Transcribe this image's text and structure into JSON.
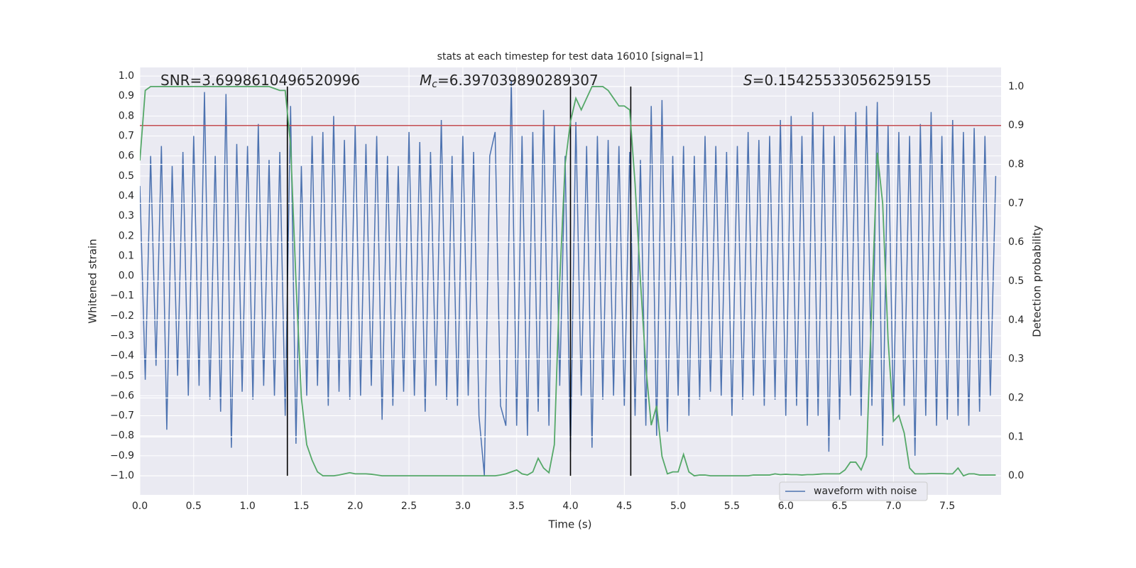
{
  "chart_data": {
    "type": "line",
    "title": "stats at each timestep for test data 16010 [signal=1]",
    "xlabel": "Time (s)",
    "ylabel": "Whitened strain",
    "y2label": "Detection probability",
    "annotations": [
      {
        "text": "SNR=3.6998610496520996"
      },
      {
        "symbol": "M",
        "sub": "c",
        "text": "=6.397039890289307"
      },
      {
        "symbol": "S",
        "text": "=0.15425533056259155"
      }
    ],
    "x": [
      0,
      0.05,
      0.1,
      0.15,
      0.2,
      0.25,
      0.3,
      0.35,
      0.4,
      0.45,
      0.5,
      0.55,
      0.6,
      0.65,
      0.7,
      0.75,
      0.8,
      0.85,
      0.9,
      0.95,
      1,
      1.05,
      1.1,
      1.15,
      1.2,
      1.25,
      1.3,
      1.35,
      1.4,
      1.45,
      1.5,
      1.55,
      1.6,
      1.65,
      1.7,
      1.75,
      1.8,
      1.85,
      1.9,
      1.95,
      2,
      2.05,
      2.1,
      2.15,
      2.2,
      2.25,
      2.3,
      2.35,
      2.4,
      2.45,
      2.5,
      2.55,
      2.6,
      2.65,
      2.7,
      2.75,
      2.8,
      2.85,
      2.9,
      2.95,
      3,
      3.05,
      3.1,
      3.15,
      3.2,
      3.25,
      3.3,
      3.35,
      3.4,
      3.45,
      3.5,
      3.55,
      3.6,
      3.65,
      3.7,
      3.75,
      3.8,
      3.85,
      3.9,
      3.95,
      4,
      4.05,
      4.1,
      4.15,
      4.2,
      4.25,
      4.3,
      4.35,
      4.4,
      4.45,
      4.5,
      4.55,
      4.6,
      4.65,
      4.7,
      4.75,
      4.8,
      4.85,
      4.9,
      4.95,
      5,
      5.05,
      5.1,
      5.15,
      5.2,
      5.25,
      5.3,
      5.35,
      5.4,
      5.45,
      5.5,
      5.55,
      5.6,
      5.65,
      5.7,
      5.75,
      5.8,
      5.85,
      5.9,
      5.95,
      6,
      6.05,
      6.1,
      6.15,
      6.2,
      6.25,
      6.3,
      6.35,
      6.4,
      6.45,
      6.5,
      6.55,
      6.6,
      6.65,
      6.7,
      6.75,
      6.8,
      6.85,
      6.9,
      6.95,
      7,
      7.05,
      7.1,
      7.15,
      7.2,
      7.25,
      7.3,
      7.35,
      7.4,
      7.45,
      7.5,
      7.55,
      7.6,
      7.65,
      7.7,
      7.75,
      7.8,
      7.85,
      7.9,
      7.95
    ],
    "series": [
      {
        "name": "waveform with noise",
        "color": "#4c72b0",
        "values": [
          0.45,
          -0.52,
          0.6,
          -0.45,
          0.65,
          -0.77,
          0.55,
          -0.5,
          0.62,
          -0.6,
          0.7,
          -0.55,
          0.92,
          -0.62,
          0.6,
          -0.68,
          0.91,
          -0.86,
          0.66,
          -0.58,
          0.65,
          -0.62,
          0.76,
          -0.55,
          0.58,
          -0.6,
          0.62,
          -0.7,
          0.85,
          -0.84,
          0.55,
          -0.6,
          0.7,
          -0.55,
          0.72,
          -0.65,
          0.8,
          -0.58,
          0.68,
          -0.62,
          0.75,
          -0.6,
          0.66,
          -0.55,
          0.7,
          -0.72,
          0.6,
          -0.65,
          0.55,
          -0.58,
          0.72,
          -0.6,
          0.67,
          -0.68,
          0.62,
          -0.55,
          0.78,
          -0.62,
          0.6,
          -0.65,
          0.7,
          -0.6,
          0.62,
          -0.7,
          -1.0,
          0.6,
          0.72,
          -0.65,
          -0.75,
          0.98,
          -0.75,
          0.7,
          -0.8,
          0.72,
          -0.68,
          0.83,
          -0.75,
          0.75,
          -0.55,
          0.6,
          -0.88,
          0.77,
          -0.6,
          0.65,
          -0.86,
          0.7,
          -0.62,
          0.68,
          -0.6,
          0.65,
          -0.65,
          0.62,
          -0.7,
          0.58,
          -0.75,
          0.85,
          -0.8,
          0.88,
          -0.78,
          0.6,
          -0.6,
          0.65,
          -0.7,
          0.6,
          -0.62,
          0.7,
          -0.58,
          0.65,
          -0.6,
          0.62,
          -0.7,
          0.65,
          -0.62,
          0.72,
          -0.6,
          0.68,
          -0.65,
          0.7,
          -0.62,
          0.78,
          -0.7,
          0.8,
          -0.65,
          0.7,
          -0.75,
          0.82,
          -0.7,
          0.75,
          -0.88,
          0.7,
          -0.72,
          0.75,
          -0.6,
          0.82,
          -0.7,
          0.85,
          -0.65,
          0.87,
          -0.85,
          0.75,
          -0.7,
          0.72,
          -0.65,
          0.7,
          -0.9,
          0.76,
          -0.7,
          0.82,
          -0.75,
          0.7,
          -0.72,
          0.78,
          -0.7,
          0.72,
          -0.75,
          0.74,
          -0.68,
          0.7,
          -0.6,
          0.5
        ]
      },
      {
        "color": "#55a868",
        "axis": "y2",
        "values": [
          0.81,
          0.99,
          1.0,
          1.0,
          1.0,
          1.0,
          1.0,
          1.0,
          1.0,
          1.0,
          1.0,
          1.0,
          1.0,
          1.0,
          1.0,
          1.0,
          1.0,
          1.0,
          1.0,
          1.0,
          1.0,
          1.0,
          1.0,
          1.0,
          1.0,
          0.995,
          0.99,
          0.99,
          0.85,
          0.5,
          0.2,
          0.08,
          0.04,
          0.01,
          0.0,
          0.0,
          0.0,
          0.002,
          0.005,
          0.008,
          0.005,
          0.005,
          0.005,
          0.004,
          0.002,
          0.0,
          0.0,
          0.0,
          0.0,
          0.0,
          0.0,
          0.0,
          0.0,
          0.0,
          0.0,
          0.0,
          0.0,
          0.0,
          0.0,
          0.0,
          0.0,
          0.0,
          0.0,
          0.0,
          0.0,
          0.0,
          0.0,
          0.002,
          0.005,
          0.01,
          0.015,
          0.005,
          0.002,
          0.01,
          0.045,
          0.02,
          0.008,
          0.08,
          0.5,
          0.8,
          0.91,
          0.97,
          0.94,
          0.97,
          1.0,
          1.0,
          1.0,
          0.99,
          0.97,
          0.95,
          0.95,
          0.94,
          0.75,
          0.5,
          0.28,
          0.13,
          0.18,
          0.05,
          0.005,
          0.01,
          0.01,
          0.055,
          0.01,
          0.0,
          0.002,
          0.002,
          0.0,
          0.0,
          0.0,
          0.0,
          0.0,
          0.0,
          0.0,
          0.0,
          0.002,
          0.002,
          0.002,
          0.002,
          0.005,
          0.003,
          0.004,
          0.003,
          0.003,
          0.002,
          0.003,
          0.003,
          0.004,
          0.005,
          0.005,
          0.005,
          0.005,
          0.015,
          0.035,
          0.035,
          0.015,
          0.05,
          0.45,
          0.83,
          0.7,
          0.35,
          0.14,
          0.155,
          0.11,
          0.02,
          0.005,
          0.005,
          0.005,
          0.006,
          0.006,
          0.006,
          0.005,
          0.005,
          0.02,
          0.0,
          0.005,
          0.005,
          0.002,
          0.002,
          0.002,
          0.002
        ]
      }
    ],
    "threshold": {
      "value": 0.9,
      "axis": "y2",
      "color": "#c44e52"
    },
    "vlines": {
      "x": [
        1.37,
        4.0,
        4.56
      ],
      "y2range": [
        0,
        1
      ],
      "color": "#000000"
    },
    "xlim": [
      0,
      8
    ],
    "ylim": [
      -1.096,
      1.043
    ],
    "y2lim": [
      -0.049,
      1.049
    ],
    "xticks": [
      {
        "value": 0,
        "label": "0.0"
      },
      {
        "value": 0.5,
        "label": "0.5"
      },
      {
        "value": 1,
        "label": "1.0"
      },
      {
        "value": 1.5,
        "label": "1.5"
      },
      {
        "value": 2,
        "label": "2.0"
      },
      {
        "value": 2.5,
        "label": "2.5"
      },
      {
        "value": 3,
        "label": "3.0"
      },
      {
        "value": 3.5,
        "label": "3.5"
      },
      {
        "value": 4,
        "label": "4.0"
      },
      {
        "value": 4.5,
        "label": "4.5"
      },
      {
        "value": 5,
        "label": "5.0"
      },
      {
        "value": 5.5,
        "label": "5.5"
      },
      {
        "value": 6,
        "label": "6.0"
      },
      {
        "value": 6.5,
        "label": "6.5"
      },
      {
        "value": 7,
        "label": "7.0"
      },
      {
        "value": 7.5,
        "label": "7.5"
      }
    ],
    "yticks": [
      {
        "value": -1,
        "label": "−1.0"
      },
      {
        "value": -0.9,
        "label": "−0.9"
      },
      {
        "value": -0.8,
        "label": "−0.8"
      },
      {
        "value": -0.7,
        "label": "−0.7"
      },
      {
        "value": -0.6,
        "label": "−0.6"
      },
      {
        "value": -0.5,
        "label": "−0.5"
      },
      {
        "value": -0.4,
        "label": "−0.4"
      },
      {
        "value": -0.3,
        "label": "−0.3"
      },
      {
        "value": -0.2,
        "label": "−0.2"
      },
      {
        "value": -0.1,
        "label": "−0.1"
      },
      {
        "value": 0,
        "label": "0.0"
      },
      {
        "value": 0.1,
        "label": "0.1"
      },
      {
        "value": 0.2,
        "label": "0.2"
      },
      {
        "value": 0.3,
        "label": "0.3"
      },
      {
        "value": 0.4,
        "label": "0.4"
      },
      {
        "value": 0.5,
        "label": "0.5"
      },
      {
        "value": 0.6,
        "label": "0.6"
      },
      {
        "value": 0.7,
        "label": "0.7"
      },
      {
        "value": 0.8,
        "label": "0.8"
      },
      {
        "value": 0.9,
        "label": "0.9"
      },
      {
        "value": 1,
        "label": "1.0"
      }
    ],
    "y2ticks": [
      {
        "value": 0,
        "label": "0.0"
      },
      {
        "value": 0.1,
        "label": "0.1"
      },
      {
        "value": 0.2,
        "label": "0.2"
      },
      {
        "value": 0.3,
        "label": "0.3"
      },
      {
        "value": 0.4,
        "label": "0.4"
      },
      {
        "value": 0.5,
        "label": "0.5"
      },
      {
        "value": 0.6,
        "label": "0.6"
      },
      {
        "value": 0.7,
        "label": "0.7"
      },
      {
        "value": 0.8,
        "label": "0.8"
      },
      {
        "value": 0.9,
        "label": "0.9"
      },
      {
        "value": 1,
        "label": "1.0"
      }
    ],
    "grid": true,
    "legend": "lower right"
  }
}
